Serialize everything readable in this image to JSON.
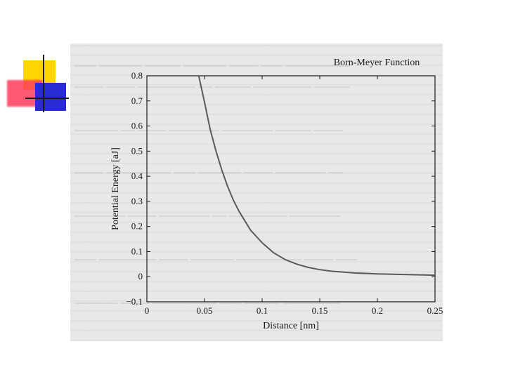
{
  "slide": {
    "background": "#ffffff",
    "logo_colors": {
      "yellow": "#ffd400",
      "red": "#ff3b5c",
      "blue": "#2a2ad6"
    }
  },
  "chart_data": {
    "type": "line",
    "title": "Born-Meyer Function",
    "xlabel": "Distance [nm]",
    "ylabel": "Potential Energy [aJ]",
    "xlim": [
      0,
      0.25
    ],
    "ylim": [
      -0.1,
      0.8
    ],
    "x_ticks": [
      "0",
      "0.05",
      "0.1",
      "0.15",
      "0.2",
      "0.25"
    ],
    "y_ticks": [
      "−0.1",
      "0",
      "0.1",
      "0.2",
      "0.3",
      "0.4",
      "0.5",
      "0.6",
      "0.7",
      "0.8"
    ],
    "grid": false,
    "series": [
      {
        "x": [
          0.045,
          0.05,
          0.055,
          0.06,
          0.065,
          0.07,
          0.075,
          0.08,
          0.09,
          0.1,
          0.11,
          0.12,
          0.13,
          0.14,
          0.15,
          0.16,
          0.18,
          0.2,
          0.22,
          0.25
        ],
        "y": [
          0.8,
          0.695,
          0.585,
          0.5,
          0.425,
          0.36,
          0.305,
          0.26,
          0.185,
          0.135,
          0.095,
          0.068,
          0.05,
          0.037,
          0.028,
          0.022,
          0.015,
          0.011,
          0.009,
          0.006
        ]
      }
    ],
    "line_color": "#5a5a5a"
  }
}
